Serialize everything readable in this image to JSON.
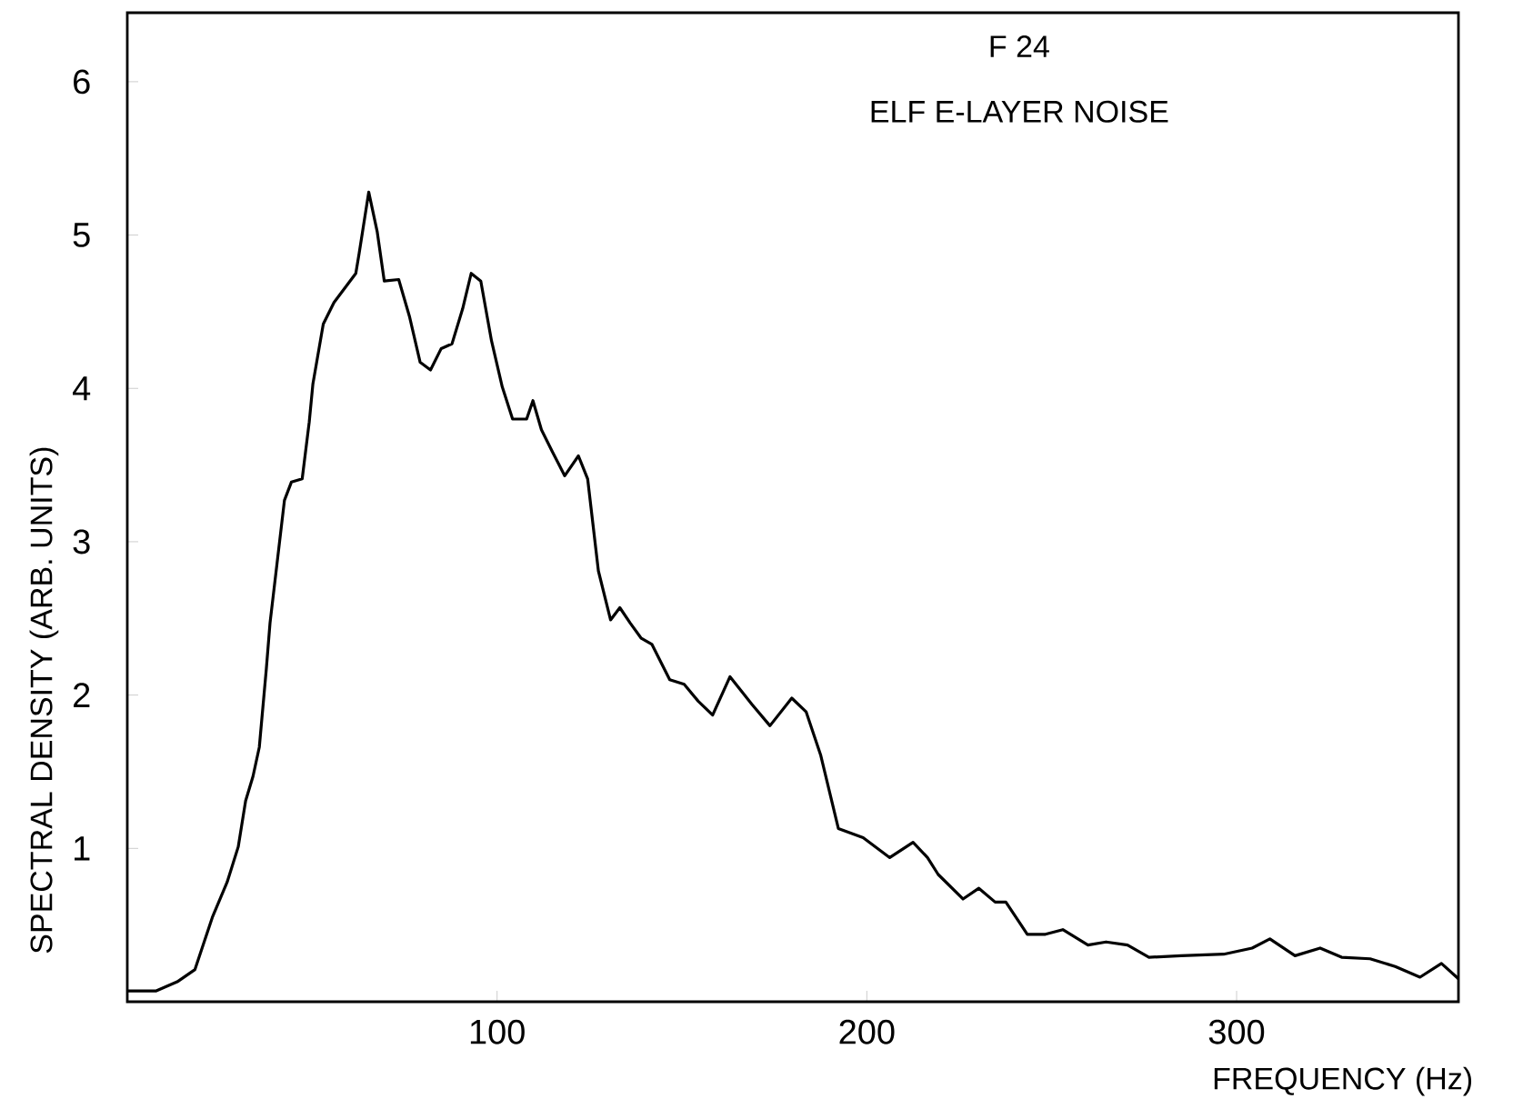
{
  "chart_data": {
    "type": "line",
    "title": "F 24",
    "subtitle": "ELF  E-LAYER NOISE",
    "xlabel": "FREQUENCY (Hz)",
    "ylabel": "SPECTRAL DENSITY (ARB. UNITS)",
    "xlim": [
      0,
      360
    ],
    "ylim": [
      0,
      6.45
    ],
    "xticks": [
      100,
      200,
      300
    ],
    "yticks": [
      1,
      2,
      3,
      4,
      5,
      6
    ],
    "grid": false,
    "marker": "none",
    "line_style": "solid",
    "series": [
      {
        "color": "#000000",
        "x": [
          0,
          7.7,
          13.5,
          18.3,
          23,
          27,
          30,
          32,
          34,
          35.7,
          37.6,
          38.6,
          40.5,
          42.5,
          44.4,
          47.3,
          49.2,
          50.2,
          53,
          55.9,
          61.8,
          62.7,
          65.3,
          67.6,
          69.5,
          73.4,
          76.3,
          79.2,
          82,
          84.9,
          87.8,
          90.7,
          93,
          95.6,
          98.5,
          101.4,
          104.2,
          108,
          109.7,
          112,
          114.9,
          118.3,
          122,
          124.5,
          127.4,
          130.7,
          133.2,
          136,
          139,
          141.9,
          146.7,
          150.6,
          154.4,
          158.3,
          163,
          168.9,
          173.8,
          179.7,
          183.6,
          187.5,
          192.3,
          199,
          206.2,
          212.5,
          216.4,
          219.3,
          226,
          230.3,
          234.7,
          237.6,
          243.4,
          248.3,
          253,
          259.8,
          264.7,
          270.5,
          276.3,
          285,
          296.5,
          304.2,
          309,
          315.8,
          322.6,
          328.4,
          336.1,
          342.9,
          349.6,
          355.4,
          360
        ],
        "values": [
          0.07,
          0.07,
          0.13,
          0.21,
          0.55,
          0.78,
          1.01,
          1.31,
          1.47,
          1.66,
          2.17,
          2.47,
          2.86,
          3.27,
          3.39,
          3.41,
          3.78,
          4.03,
          4.42,
          4.56,
          4.75,
          4.88,
          5.28,
          5.02,
          4.7,
          4.71,
          4.47,
          4.17,
          4.12,
          4.26,
          4.29,
          4.52,
          4.75,
          4.7,
          4.31,
          4.01,
          3.8,
          3.8,
          3.92,
          3.73,
          3.59,
          3.43,
          3.56,
          3.41,
          2.81,
          2.49,
          2.57,
          2.47,
          2.37,
          2.33,
          2.1,
          2.07,
          1.96,
          1.87,
          2.12,
          1.94,
          1.8,
          1.98,
          1.89,
          1.61,
          1.13,
          1.07,
          0.94,
          1.04,
          0.94,
          0.83,
          0.67,
          0.74,
          0.65,
          0.65,
          0.44,
          0.44,
          0.47,
          0.37,
          0.39,
          0.37,
          0.29,
          0.3,
          0.31,
          0.35,
          0.41,
          0.3,
          0.35,
          0.29,
          0.28,
          0.23,
          0.16,
          0.25,
          0.15
        ]
      }
    ]
  }
}
